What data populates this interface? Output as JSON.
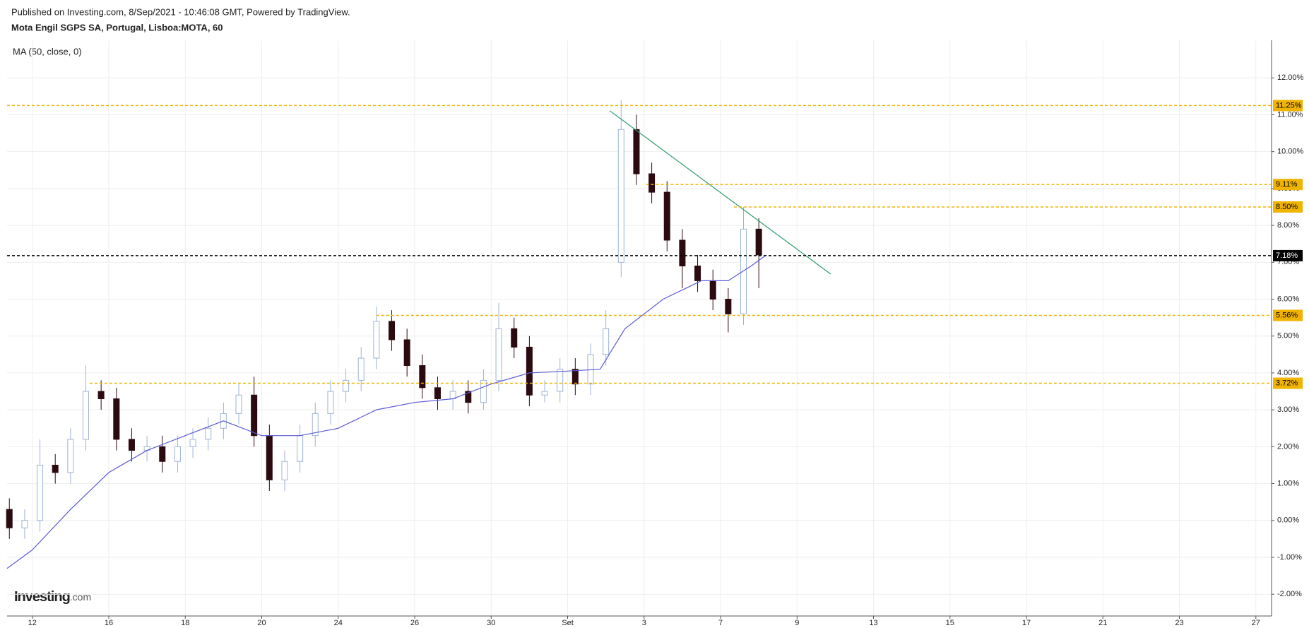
{
  "chart_data": {
    "type": "candlestick",
    "published": "Published on Investing.com, 8/Sep/2021 - 10:46:08 GMT, Powered by TradingView.",
    "title": "Mota Engil SGPS SA, Portugal, Lisboa:MOTA, 60",
    "indicator_label": "MA (50, close, 0)",
    "logo": "Investing",
    "logo_suffix": ".com",
    "xlim": [
      -0.66,
      32.41
    ],
    "xticks": [
      {
        "value": 0,
        "label": "12"
      },
      {
        "value": 2,
        "label": "16"
      },
      {
        "value": 4,
        "label": "18"
      },
      {
        "value": 6,
        "label": "20"
      },
      {
        "value": 8,
        "label": "24"
      },
      {
        "value": 10,
        "label": "26"
      },
      {
        "value": 12,
        "label": "30"
      },
      {
        "value": 14,
        "label": "Set"
      },
      {
        "value": 16,
        "label": "3"
      },
      {
        "value": 18,
        "label": "7"
      },
      {
        "value": 20,
        "label": "9"
      },
      {
        "value": 22,
        "label": "13"
      },
      {
        "value": 24,
        "label": "15"
      },
      {
        "value": 26,
        "label": "17"
      },
      {
        "value": 28,
        "label": "21"
      },
      {
        "value": 30,
        "label": "23"
      },
      {
        "value": 32,
        "label": "27"
      }
    ],
    "ylim": [
      -2.59,
      13.02
    ],
    "yticks": [
      {
        "value": -2,
        "label": "-2.00%"
      },
      {
        "value": -1,
        "label": "-1.00%"
      },
      {
        "value": 0,
        "label": "0.00%"
      },
      {
        "value": 1,
        "label": "1.00%"
      },
      {
        "value": 2,
        "label": "2.00%"
      },
      {
        "value": 3,
        "label": "3.00%"
      },
      {
        "value": 4,
        "label": "4.00%"
      },
      {
        "value": 5,
        "label": "5.00%"
      },
      {
        "value": 6,
        "label": "6.00%"
      },
      {
        "value": 7,
        "label": "7.00%"
      },
      {
        "value": 8,
        "label": "8.00%"
      },
      {
        "value": 9,
        "label": "9.00%"
      },
      {
        "value": 10,
        "label": "10.00%"
      },
      {
        "value": 11,
        "label": "11.00%"
      },
      {
        "value": 12,
        "label": "12.00%"
      }
    ],
    "grid": true,
    "up_color": "#ffffff",
    "up_border": "#9db4d6",
    "down_color": "#2b0b10",
    "x": [
      -0.6,
      -0.2,
      0.2,
      0.6,
      1.0,
      1.4,
      1.8,
      2.2,
      2.6,
      3.0,
      3.4,
      3.8,
      4.2,
      4.6,
      5.0,
      5.4,
      5.8,
      6.2,
      6.6,
      7.0,
      7.4,
      7.8,
      8.2,
      8.6,
      9.0,
      9.4,
      9.8,
      10.2,
      10.6,
      11.0,
      11.4,
      11.8,
      12.2,
      12.6,
      13.0,
      13.4,
      13.8,
      14.2,
      14.6,
      15.0,
      15.4,
      15.8,
      16.2,
      16.6,
      17.0,
      17.4,
      17.8,
      18.2,
      18.6,
      19.0
    ],
    "open": [
      0.3,
      -0.2,
      0.0,
      1.5,
      1.3,
      2.2,
      3.5,
      3.3,
      2.2,
      1.9,
      2.0,
      1.6,
      2.0,
      2.2,
      2.5,
      2.9,
      3.4,
      2.3,
      1.1,
      1.6,
      2.3,
      2.9,
      3.5,
      3.8,
      4.4,
      5.4,
      4.9,
      4.2,
      3.6,
      3.3,
      3.5,
      3.2,
      3.8,
      5.2,
      4.7,
      3.4,
      3.5,
      4.1,
      3.7,
      4.5,
      7.0,
      10.6,
      9.4,
      8.9,
      7.6,
      6.9,
      6.5,
      6.0,
      5.6,
      7.9
    ],
    "high": [
      0.6,
      0.3,
      2.2,
      1.8,
      2.5,
      4.2,
      3.8,
      3.6,
      2.5,
      2.3,
      2.3,
      2.3,
      2.5,
      2.8,
      3.2,
      3.7,
      3.9,
      2.6,
      1.9,
      2.6,
      3.2,
      3.8,
      4.1,
      4.7,
      5.8,
      5.7,
      5.2,
      4.5,
      3.9,
      3.8,
      3.8,
      4.1,
      5.9,
      5.5,
      5.0,
      3.8,
      4.4,
      4.4,
      4.8,
      5.7,
      11.4,
      11.0,
      9.7,
      9.2,
      7.9,
      7.2,
      6.8,
      6.3,
      8.5,
      8.2
    ],
    "low": [
      -0.5,
      -0.5,
      -0.3,
      1.0,
      1.0,
      1.9,
      3.0,
      1.9,
      1.6,
      1.6,
      1.3,
      1.3,
      1.7,
      1.9,
      2.2,
      2.6,
      2.0,
      0.8,
      0.8,
      1.3,
      2.0,
      2.6,
      3.2,
      3.5,
      4.1,
      4.6,
      3.9,
      3.3,
      3.0,
      3.0,
      2.9,
      3.0,
      3.5,
      4.4,
      3.1,
      3.2,
      3.2,
      3.4,
      3.4,
      4.2,
      6.6,
      9.1,
      8.6,
      7.3,
      6.3,
      6.2,
      5.7,
      5.1,
      5.3,
      6.3
    ],
    "close": [
      -0.2,
      0.0,
      1.5,
      1.3,
      2.2,
      3.5,
      3.3,
      2.2,
      1.9,
      2.0,
      1.6,
      2.0,
      2.2,
      2.5,
      2.9,
      3.4,
      2.3,
      1.1,
      1.6,
      2.3,
      2.9,
      3.5,
      3.8,
      4.4,
      5.4,
      4.9,
      4.2,
      3.6,
      3.3,
      3.5,
      3.2,
      3.8,
      5.2,
      4.7,
      3.4,
      3.5,
      4.1,
      3.7,
      4.5,
      5.2,
      10.6,
      9.4,
      8.9,
      7.6,
      6.9,
      6.5,
      6.0,
      5.6,
      7.9,
      7.2
    ],
    "ma": {
      "color": "#5b5bd6",
      "x": [
        -0.66,
        0,
        1,
        2,
        3,
        4,
        5,
        6,
        7,
        8,
        9,
        10,
        11,
        12,
        13,
        14,
        14.85,
        15.5,
        16.5,
        17.5,
        18.2,
        18.8,
        19.2
      ],
      "values": [
        -1.3,
        -0.8,
        0.3,
        1.3,
        1.9,
        2.3,
        2.7,
        2.3,
        2.3,
        2.5,
        3.0,
        3.2,
        3.3,
        3.7,
        4.0,
        4.05,
        4.1,
        5.2,
        6.0,
        6.5,
        6.5,
        6.9,
        7.2
      ]
    },
    "trendline": {
      "color": "#2e9b6b",
      "x": [
        15.1,
        20.88
      ],
      "values": [
        11.11,
        6.68
      ]
    },
    "levels": [
      {
        "value": 11.25,
        "label": "11.25%",
        "from": -0.66,
        "color": "#f0b400"
      },
      {
        "value": 9.11,
        "label": "9.11%",
        "from": 16.05,
        "color": "#f0b400"
      },
      {
        "value": 8.5,
        "label": "8.50%",
        "from": 18.35,
        "color": "#f0b400"
      },
      {
        "value": 7.18,
        "label": "7.18%",
        "from": -0.66,
        "color": "#000000"
      },
      {
        "value": 5.56,
        "label": "5.56%",
        "from": 9.0,
        "color": "#f0b400"
      },
      {
        "value": 3.72,
        "label": "3.72%",
        "from": 1.5,
        "color": "#f0b400"
      }
    ]
  }
}
